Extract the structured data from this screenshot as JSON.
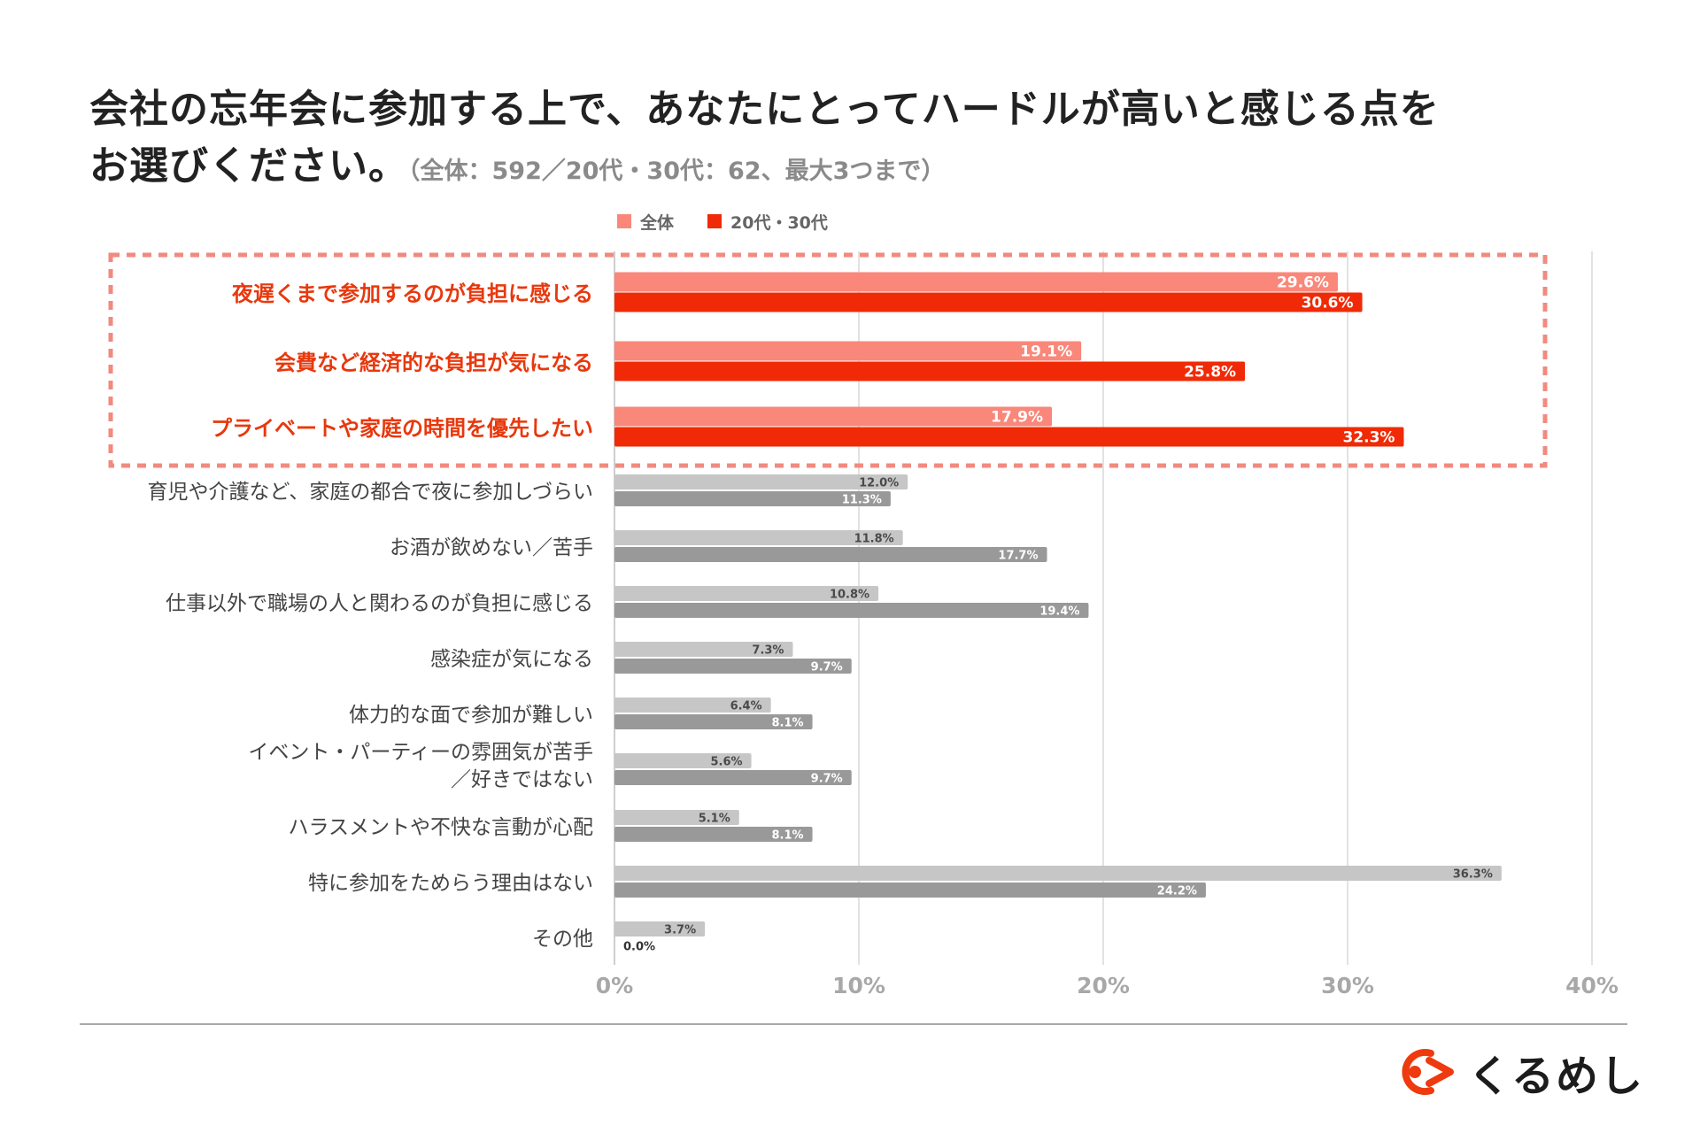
{
  "title": {
    "line1": "会社の忘年会に参加する上で、あなたにとってハードルが高いと感じる点を",
    "line2": "お選びください。",
    "subtitle": "（全体：592／20代・30代：62、最大3つまで）"
  },
  "colors": {
    "all_highlight": "#f9877a",
    "young_highlight": "#f02a06",
    "all_normal": "#c6c6c6",
    "young_normal": "#999999",
    "highlight_label": "#e8380d",
    "normal_label": "#444444",
    "dashed_box": "#f18a7f",
    "grid": "#d9d9d9",
    "tick": "#a8a8a8"
  },
  "logo": {
    "wordmark": "くるめし",
    "icon": "kurumeshi-logo-icon"
  },
  "chart_data": {
    "type": "bar",
    "orientation": "horizontal",
    "title": "会社の忘年会に参加する上で、あなたにとってハードルが高いと感じる点をお選びください。",
    "subtitle": "（全体：592／20代・30代：62、最大3つまで）",
    "legend": [
      "全体",
      "20代・30代"
    ],
    "legend_position": "top",
    "xlabel": "",
    "ylabel": "",
    "xlim": [
      0,
      40
    ],
    "x_ticks": [
      0,
      10,
      20,
      30,
      40
    ],
    "x_tick_labels": [
      "0%",
      "10%",
      "20%",
      "30%",
      "40%"
    ],
    "grid": true,
    "highlight_count": 3,
    "categories": [
      [
        "夜遅くまで参加するのが負担に感じる"
      ],
      [
        "会費など経済的な負担が気になる"
      ],
      [
        "プライベートや家庭の時間を優先したい"
      ],
      [
        "育児や介護など、家庭の都合で夜に参加しづらい"
      ],
      [
        "お酒が飲めない／苦手"
      ],
      [
        "仕事以外で職場の人と関わるのが負担に感じる"
      ],
      [
        "感染症が気になる"
      ],
      [
        "体力的な面で参加が難しい"
      ],
      [
        "イベント・パーティーの雰囲気が苦手",
        "／好きではない"
      ],
      [
        "ハラスメントや不快な言動が心配"
      ],
      [
        "特に参加をためらう理由はない"
      ],
      [
        "その他"
      ]
    ],
    "series": [
      {
        "name": "全体",
        "values": [
          29.6,
          19.1,
          17.9,
          12.0,
          11.8,
          10.8,
          7.3,
          6.4,
          5.6,
          5.1,
          36.3,
          3.7
        ],
        "labels": [
          "29.6%",
          "19.1%",
          "17.9%",
          "12.0%",
          "11.8%",
          "10.8%",
          "7.3%",
          "6.4%",
          "5.6%",
          "5.1%",
          "36.3%",
          "3.7%"
        ]
      },
      {
        "name": "20代・30代",
        "values": [
          30.6,
          25.8,
          32.3,
          11.3,
          17.7,
          19.4,
          9.7,
          8.1,
          9.7,
          8.1,
          24.2,
          0.0
        ],
        "labels": [
          "30.6%",
          "25.8%",
          "32.3%",
          "11.3%",
          "17.7%",
          "19.4%",
          "9.7%",
          "8.1%",
          "9.7%",
          "8.1%",
          "24.2%",
          "0.0%"
        ]
      }
    ]
  }
}
